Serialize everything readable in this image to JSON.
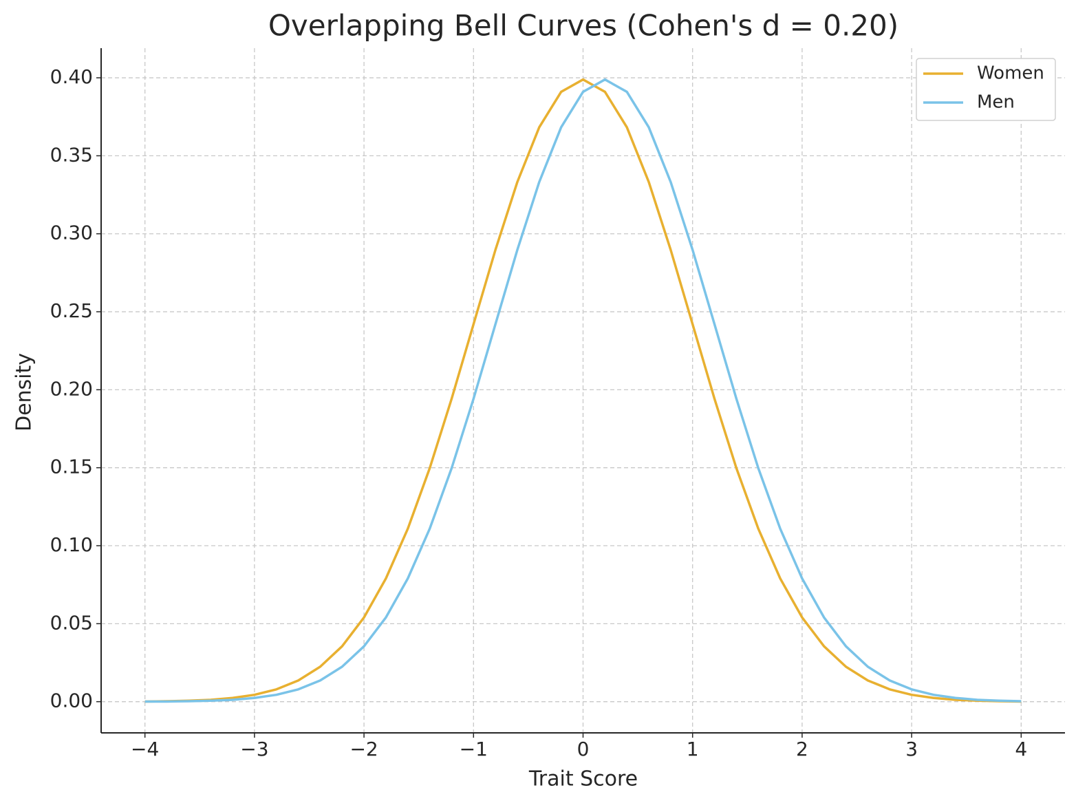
{
  "chart_data": {
    "type": "line",
    "title": "Overlapping Bell Curves (Cohen's d = 0.20)",
    "x_label": "Trait Score",
    "y_label": "Density",
    "x": [
      -4,
      -3.8,
      -3.6,
      -3.4,
      -3.2,
      -3,
      -2.8,
      -2.6,
      -2.4,
      -2.2,
      -2,
      -1.8,
      -1.6,
      -1.4,
      -1.2,
      -1,
      -0.8,
      -0.6,
      -0.4,
      -0.2,
      0,
      0.2,
      0.4,
      0.6,
      0.8,
      1,
      1.2,
      1.4,
      1.6,
      1.8,
      2,
      2.2,
      2.4,
      2.6,
      2.8,
      3,
      3.2,
      3.4,
      3.6,
      3.8,
      4
    ],
    "series": [
      {
        "name": "Women",
        "color": "#e8b030",
        "values": [
          0.0001,
          0.0003,
          0.0006,
          0.0012,
          0.0024,
          0.0044,
          0.0079,
          0.0136,
          0.0224,
          0.0355,
          0.054,
          0.079,
          0.1109,
          0.1497,
          0.1942,
          0.242,
          0.2897,
          0.3332,
          0.3683,
          0.391,
          0.3989,
          0.391,
          0.3683,
          0.3332,
          0.2897,
          0.242,
          0.1942,
          0.1497,
          0.1109,
          0.079,
          0.054,
          0.0355,
          0.0224,
          0.0136,
          0.0079,
          0.0044,
          0.0024,
          0.0012,
          0.0006,
          0.0003,
          0.0001
        ]
      },
      {
        "name": "Men",
        "color": "#7ac3e8",
        "values": [
          0.0001,
          0.0001,
          0.0003,
          0.0006,
          0.0012,
          0.0024,
          0.0044,
          0.0079,
          0.0136,
          0.0224,
          0.0355,
          0.054,
          0.079,
          0.1109,
          0.1497,
          0.1942,
          0.242,
          0.2897,
          0.3332,
          0.3683,
          0.391,
          0.3989,
          0.391,
          0.3683,
          0.3332,
          0.2897,
          0.242,
          0.1942,
          0.1497,
          0.1109,
          0.079,
          0.054,
          0.0355,
          0.0224,
          0.0136,
          0.0079,
          0.0044,
          0.0024,
          0.0012,
          0.0006,
          0.0003
        ]
      }
    ],
    "xlim": [
      -4.4,
      4.4
    ],
    "ylim": [
      -0.02,
      0.419
    ],
    "xticks": [
      {
        "value": -4,
        "label": "−4"
      },
      {
        "value": -3,
        "label": "−3"
      },
      {
        "value": -2,
        "label": "−2"
      },
      {
        "value": -1,
        "label": "−1"
      },
      0,
      1,
      2,
      3,
      4
    ],
    "yticks": [
      {
        "value": 0,
        "label": "0.00"
      },
      {
        "value": 0.05,
        "label": "0.05"
      },
      {
        "value": 0.1,
        "label": "0.10"
      },
      {
        "value": 0.15,
        "label": "0.15"
      },
      {
        "value": 0.2,
        "label": "0.20"
      },
      {
        "value": 0.25,
        "label": "0.25"
      },
      {
        "value": 0.3,
        "label": "0.30"
      },
      {
        "value": 0.35,
        "label": "0.35"
      },
      {
        "value": 0.4,
        "label": "0.40"
      }
    ],
    "grid": true,
    "legend": "upper right"
  }
}
